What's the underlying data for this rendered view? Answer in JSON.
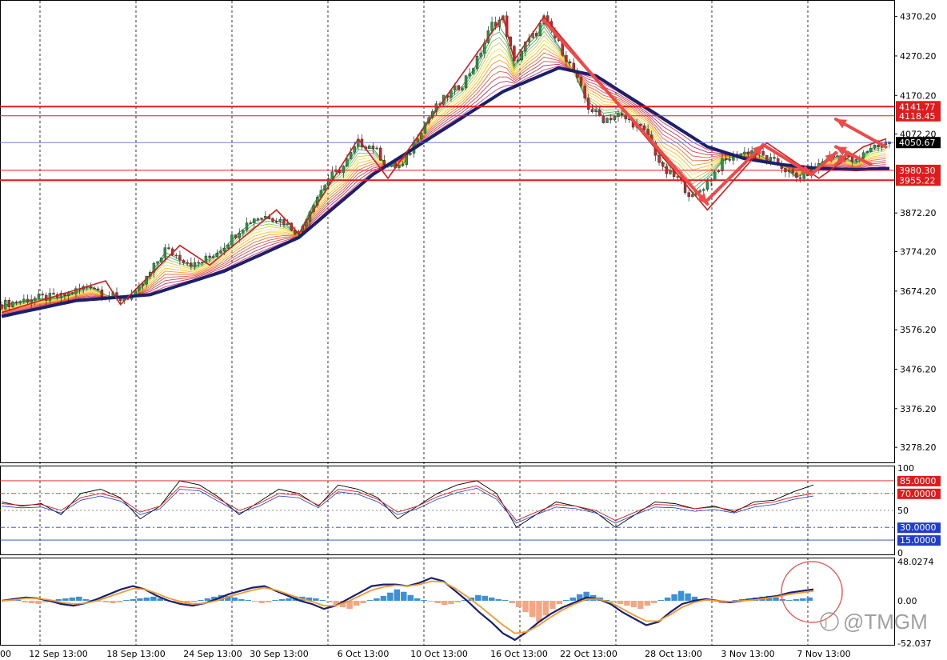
{
  "colors": {
    "bull": "#1e9d3f",
    "bear": "#c62828",
    "ema_main": "#1a1f6e",
    "resistance": "#e31a1c",
    "zigzag": "#d51a1a",
    "arrow": "#ef4a4a",
    "hist_pos": "#3d8fd6",
    "hist_neg": "#f4a784",
    "macd_line": "#1a1f6e",
    "signal_line": "#f29a2e",
    "stoch_main": "#000000",
    "stoch_red": "#e31a1c",
    "stoch_blue": "#1f3ccf"
  },
  "chart_data": [
    {
      "type": "candlestick",
      "grid": true,
      "x_labels": [
        "12 Sep 13:00",
        "18 Sep 13:00",
        "24 Sep 13:00",
        "30 Sep 13:00",
        "6 Oct 13:00",
        "10 Oct 13:00",
        "16 Oct 13:00",
        "22 Oct 13:00",
        "28 Oct 13:00",
        "3 Nov 13:00",
        "7 Nov 13:00"
      ],
      "y_ticks": [
        "4370.20",
        "4270.20",
        "4170.20",
        "4072.20",
        "3872.20",
        "3774.20",
        "3674.20",
        "3576.20",
        "3476.20",
        "3376.20",
        "3278.20"
      ],
      "ylim": [
        3240,
        4410
      ],
      "current_price": "4050.67",
      "level_labels": [
        "4141.77",
        "4118.45",
        "3980.30",
        "3955.22"
      ],
      "levels": [
        {
          "value": 4141.77,
          "label": "4141.77"
        },
        {
          "value": 4118.45,
          "label": "4118.45"
        },
        {
          "value": 3980.3,
          "label": "3980.30"
        },
        {
          "value": 3955.22,
          "label": "3955.22"
        }
      ],
      "close_path": [
        [
          0,
          3640
        ],
        [
          8,
          3655
        ],
        [
          16,
          3660
        ],
        [
          24,
          3690
        ],
        [
          28,
          3665
        ],
        [
          32,
          3655
        ],
        [
          36,
          3665
        ],
        [
          40,
          3720
        ],
        [
          44,
          3780
        ],
        [
          48,
          3760
        ],
        [
          52,
          3740
        ],
        [
          56,
          3760
        ],
        [
          60,
          3790
        ],
        [
          64,
          3830
        ],
        [
          68,
          3860
        ],
        [
          72,
          3865
        ],
        [
          76,
          3850
        ],
        [
          80,
          3820
        ],
        [
          84,
          3900
        ],
        [
          88,
          3960
        ],
        [
          92,
          3990
        ],
        [
          96,
          4050
        ],
        [
          100,
          4040
        ],
        [
          104,
          3990
        ],
        [
          108,
          3990
        ],
        [
          112,
          4070
        ],
        [
          116,
          4130
        ],
        [
          120,
          4170
        ],
        [
          124,
          4200
        ],
        [
          128,
          4260
        ],
        [
          132,
          4350
        ],
        [
          135,
          4365
        ],
        [
          138,
          4250
        ],
        [
          141,
          4300
        ],
        [
          144,
          4330
        ],
        [
          146,
          4365
        ],
        [
          150,
          4300
        ],
        [
          154,
          4230
        ],
        [
          158,
          4140
        ],
        [
          162,
          4110
        ],
        [
          166,
          4120
        ],
        [
          170,
          4100
        ],
        [
          174,
          4070
        ],
        [
          178,
          3980
        ],
        [
          182,
          3960
        ],
        [
          186,
          3910
        ],
        [
          190,
          3950
        ],
        [
          194,
          4000
        ],
        [
          198,
          4020
        ],
        [
          202,
          4030
        ],
        [
          206,
          4010
        ],
        [
          210,
          3990
        ],
        [
          214,
          3960
        ],
        [
          218,
          3980
        ],
        [
          222,
          4010
        ],
        [
          226,
          4020
        ],
        [
          230,
          4000
        ],
        [
          234,
          4040
        ],
        [
          238,
          4050
        ]
      ],
      "ema_main_path": [
        [
          0,
          3610
        ],
        [
          20,
          3650
        ],
        [
          40,
          3665
        ],
        [
          60,
          3725
        ],
        [
          80,
          3810
        ],
        [
          100,
          3970
        ],
        [
          120,
          4090
        ],
        [
          135,
          4180
        ],
        [
          150,
          4240
        ],
        [
          160,
          4220
        ],
        [
          170,
          4160
        ],
        [
          180,
          4100
        ],
        [
          190,
          4040
        ],
        [
          200,
          4010
        ],
        [
          210,
          3995
        ],
        [
          220,
          3985
        ],
        [
          230,
          3982
        ],
        [
          238,
          3985
        ]
      ]
    },
    {
      "type": "line",
      "title": "",
      "ylim": [
        0,
        100
      ],
      "y_ticks": [
        "100",
        "50",
        "0"
      ],
      "levels": [
        "85.0000",
        "70.0000",
        "30.0000",
        "15.0000"
      ],
      "series": [
        {
          "values": [
            60,
            55,
            58,
            45,
            70,
            75,
            65,
            40,
            55,
            85,
            80,
            65,
            45,
            60,
            75,
            70,
            55,
            80,
            75,
            65,
            40,
            55,
            70,
            80,
            85,
            70,
            30,
            45,
            60,
            55,
            48,
            30,
            45,
            60,
            58,
            52,
            55,
            48,
            60,
            62,
            72,
            80
          ]
        },
        {
          "values": [
            58,
            56,
            57,
            50,
            65,
            70,
            64,
            48,
            55,
            78,
            76,
            63,
            50,
            58,
            70,
            68,
            56,
            75,
            72,
            63,
            48,
            55,
            66,
            74,
            79,
            66,
            38,
            48,
            57,
            55,
            50,
            38,
            48,
            57,
            56,
            52,
            54,
            50,
            57,
            60,
            66,
            70
          ]
        }
      ]
    },
    {
      "type": "bar",
      "title": "",
      "ylim": [
        -52.037,
        48.0274
      ],
      "y_ticks": [
        "48.0274",
        "0.00",
        "-52.037"
      ],
      "hist": [
        1,
        2,
        1,
        -2,
        -3,
        -4,
        -2,
        1,
        2,
        3,
        4,
        5,
        2,
        1,
        -1,
        -2,
        -3,
        -2,
        1,
        2,
        3,
        4,
        5,
        3,
        1,
        -1,
        -3,
        -5,
        -2,
        1,
        3,
        5,
        7,
        6,
        4,
        2,
        1,
        -1,
        -3,
        -2,
        1,
        2,
        3,
        4,
        5,
        4,
        3,
        1,
        -2,
        -5,
        -8,
        -10,
        -6,
        -3,
        1,
        3,
        6,
        10,
        14,
        11,
        7,
        3,
        1,
        -1,
        -3,
        -5,
        -4,
        -2,
        1,
        4,
        7,
        6,
        4,
        2,
        1,
        -3,
        -8,
        -14,
        -20,
        -26,
        -18,
        -10,
        -4,
        1,
        4,
        8,
        11,
        7,
        4,
        1,
        -2,
        -4,
        -6,
        -8,
        -10,
        -6,
        -3,
        1,
        4,
        8,
        12,
        9,
        5,
        2,
        1,
        -1,
        -3,
        -2,
        1,
        2,
        3,
        4,
        5,
        6,
        4,
        2,
        1,
        2,
        3,
        4
      ],
      "macd": [
        0,
        2,
        4,
        3,
        0,
        -4,
        -6,
        -3,
        2,
        8,
        14,
        18,
        14,
        6,
        0,
        -4,
        -6,
        -3,
        2,
        8,
        12,
        16,
        18,
        12,
        6,
        0,
        -4,
        -10,
        -6,
        2,
        10,
        18,
        20,
        20,
        18,
        22,
        28,
        24,
        12,
        0,
        -14,
        -26,
        -40,
        -48,
        -38,
        -26,
        -16,
        -8,
        -2,
        4,
        2,
        -4,
        -14,
        -22,
        -30,
        -26,
        -14,
        -4,
        0,
        2,
        0,
        -2,
        0,
        2,
        4,
        6,
        10,
        12,
        14
      ],
      "signal": [
        0,
        1,
        3,
        3,
        1,
        -2,
        -4,
        -3,
        0,
        5,
        10,
        15,
        14,
        9,
        3,
        -1,
        -4,
        -3,
        0,
        5,
        9,
        13,
        16,
        13,
        8,
        3,
        -1,
        -6,
        -6,
        -1,
        6,
        13,
        17,
        19,
        18,
        20,
        24,
        23,
        15,
        5,
        -6,
        -18,
        -30,
        -40,
        -38,
        -30,
        -20,
        -11,
        -4,
        2,
        2,
        -2,
        -10,
        -18,
        -25,
        -25,
        -17,
        -8,
        -2,
        1,
        0,
        -1,
        0,
        1,
        3,
        5,
        8,
        10,
        12
      ]
    }
  ],
  "watermark": "@TMGM"
}
